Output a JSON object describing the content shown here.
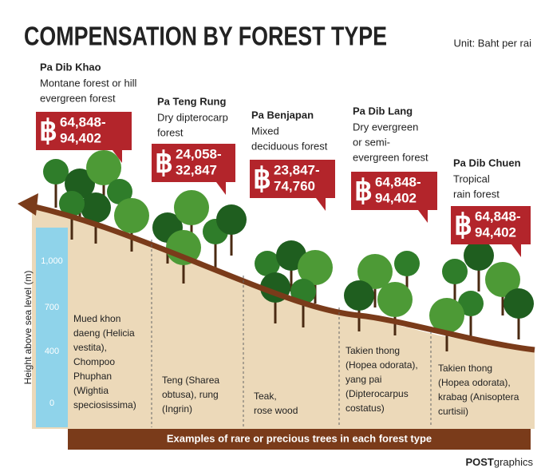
{
  "title": "COMPENSATION BY FOREST TYPE",
  "unit": "Unit: Baht per rai",
  "currency_symbol": "฿",
  "axis": {
    "label": "Height above sea level (m)",
    "ticks": [
      "1,000",
      "700",
      "400",
      "0"
    ]
  },
  "forests": [
    {
      "name": "Pa Dib Khao",
      "description": [
        "Montane forest or hill",
        "evergreen forest"
      ],
      "compensation": [
        "64,848-",
        "94,402"
      ],
      "trees": [
        "Mued khon",
        "daeng (Helicia",
        "vestita),",
        "Chompoo",
        "Phuphan",
        "(Wightia",
        "speciosissima)"
      ]
    },
    {
      "name": "Pa Teng Rung",
      "description": [
        "Dry dipterocarp",
        "forest"
      ],
      "compensation": [
        "24,058-",
        "32,847"
      ],
      "trees": [
        "Teng (Sharea",
        "obtusa), rung",
        "(Ingrin)"
      ]
    },
    {
      "name": "Pa Benjapan",
      "description": [
        "Mixed",
        "deciduous forest"
      ],
      "compensation": [
        "23,847-",
        "74,760"
      ],
      "trees": [
        "Teak,",
        "rose wood"
      ]
    },
    {
      "name": "Pa Dib Lang",
      "description": [
        "Dry evergreen",
        "or semi-",
        "evergreen forest"
      ],
      "compensation": [
        "64,848-",
        "94,402"
      ],
      "trees": [
        "Takien thong",
        "(Hopea odorata),",
        "yang pai",
        "(Dipterocarpus",
        "costatus)"
      ]
    },
    {
      "name": "Pa Dib Chuen",
      "description": [
        "Tropical",
        "rain forest"
      ],
      "compensation": [
        "64,848-",
        "94,402"
      ],
      "trees": [
        "Takien thong",
        "(Hopea odorata),",
        "krabag (Anisoptera",
        "curtisii)"
      ]
    }
  ],
  "footer": "Examples of rare or precious trees in each forest type",
  "credit": {
    "bold": "POST",
    "rest": "graphics"
  }
}
